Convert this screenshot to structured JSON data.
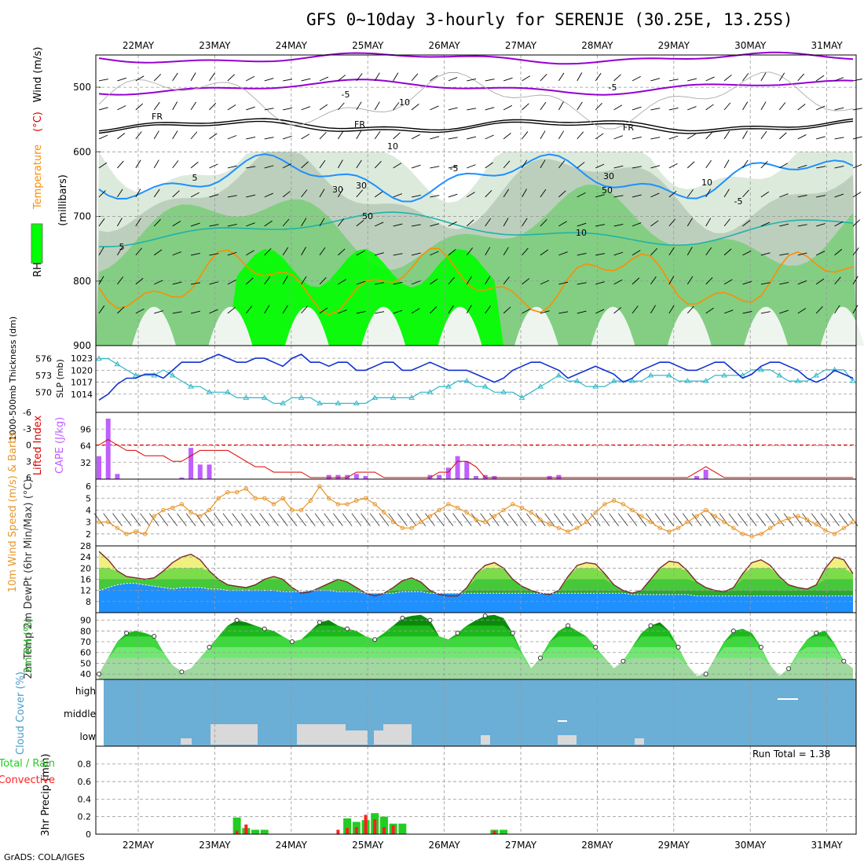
{
  "title": "GFS 0~10day 3-hourly for SERENJE (30.25E, 13.25S)",
  "credit": "GrADS: COLA/IGES",
  "x_axis_dates": [
    "22MAY",
    "23MAY",
    "24MAY",
    "25MAY",
    "26MAY",
    "27MAY",
    "28MAY",
    "29MAY",
    "30MAY",
    "31MAY"
  ],
  "colors": {
    "rh_green_light": "#d8e8d8",
    "rh_green_mid": "#7ccd7c",
    "rh_green_bright": "#00ff00",
    "temp_purple": "#9400d3",
    "temp_black": "#000000",
    "temp_blue": "#1e90ff",
    "temp_teal": "#20b2aa",
    "temp_orange": "#ff8c00",
    "cape_purple": "#bf5fff",
    "li_red": "#dd0000",
    "wind_orange": "#e8962a",
    "slp_blue": "#1030d0",
    "thick_cyan": "#30b8c8",
    "cloud_blue": "#6baed6",
    "cloud_gray": "#d9d9d9",
    "precip_green": "#22cc22",
    "precip_red": "#ff2020",
    "dew_blue": "#1e90ff",
    "temp_yellow": "#f0f080"
  },
  "chart_data": [
    {
      "type": "heatmap",
      "panel": "upper_air",
      "ylabel_parts": [
        "RH (%)",
        "Temperature",
        "(°C)",
        "Wind (m/s)"
      ],
      "ylabel_right": "(millibars)",
      "yticks": [
        "500",
        "600",
        "700",
        "800",
        "900"
      ],
      "ylim": [
        900,
        450
      ],
      "contour_labels": [
        "-5",
        "-5",
        "FR",
        "FR",
        "FR",
        "-5",
        "5",
        "-5",
        "10",
        "5",
        "10",
        "10",
        "30",
        "30",
        "50",
        "30",
        "50",
        "10"
      ]
    },
    {
      "type": "line",
      "panel": "slp_thickness",
      "ylabel_left": "1000-500mb Thickness (dm)",
      "ylabel_right": "SLP (mb)",
      "yticks_left": [
        "576",
        "573",
        "570"
      ],
      "yticks_right": [
        "1023",
        "1020",
        "1017",
        "1014"
      ],
      "series": [
        {
          "name": "SLP (mb)",
          "values": [
            1012.5,
            1014,
            1016.5,
            1018,
            1018,
            1019,
            1019,
            1018,
            1020,
            1022,
            1022,
            1022,
            1023,
            1024,
            1023,
            1022,
            1022,
            1023,
            1023,
            1022,
            1021,
            1023,
            1024,
            1022,
            1022,
            1021,
            1022,
            1022,
            1020,
            1020,
            1021,
            1022,
            1022,
            1020,
            1020,
            1021,
            1022,
            1021,
            1020,
            1020,
            1020,
            1019,
            1018,
            1017,
            1018,
            1020,
            1021,
            1022,
            1022,
            1021,
            1020,
            1018,
            1019,
            1020,
            1021,
            1020,
            1019,
            1017,
            1018,
            1020,
            1021,
            1022,
            1022,
            1021,
            1020,
            1020,
            1021,
            1022,
            1022,
            1020,
            1018,
            1019,
            1021,
            1022,
            1022,
            1021,
            1020,
            1018,
            1017,
            1018,
            1020,
            1019,
            1018
          ]
        },
        {
          "name": "1000-500mb Thickness (dm)",
          "values": [
            576,
            576,
            575,
            574,
            573,
            573,
            573,
            574,
            573,
            572,
            571,
            571,
            570,
            570,
            570,
            569,
            569,
            569,
            569,
            568,
            568,
            569,
            569,
            569,
            568,
            568,
            568,
            568,
            568,
            568,
            569,
            569,
            569,
            569,
            569,
            570,
            570,
            571,
            571,
            572,
            572,
            571,
            571,
            570,
            570,
            570,
            569,
            570,
            571,
            572,
            573,
            572,
            572,
            571,
            571,
            571,
            572,
            572,
            572,
            572,
            573,
            573,
            573,
            572,
            572,
            572,
            572,
            573,
            573,
            573,
            573,
            574,
            574,
            574,
            573,
            572,
            572,
            572,
            573,
            574,
            574,
            574,
            572
          ]
        }
      ]
    },
    {
      "type": "bar",
      "panel": "cape_li",
      "ylabel_left": "Lifted Index",
      "ylabel_right": "CAPE (J/kg)",
      "yticks_left": [
        "-6",
        "-3",
        "0",
        "3",
        "6"
      ],
      "yticks_right": [
        "96",
        "64",
        "32"
      ],
      "ylim_cape": [
        0,
        128
      ],
      "series": [
        {
          "name": "CAPE (J/kg)",
          "values": [
            44,
            116,
            10,
            0,
            0,
            0,
            0,
            0,
            0,
            3,
            60,
            28,
            28,
            0,
            0,
            0,
            0,
            0,
            0,
            0,
            0,
            0,
            0,
            0,
            0,
            8,
            8,
            8,
            10,
            6,
            0,
            0,
            0,
            0,
            0,
            0,
            8,
            8,
            22,
            44,
            34,
            6,
            8,
            6,
            0,
            0,
            0,
            0,
            0,
            6,
            8,
            0,
            0,
            0,
            0,
            0,
            0,
            0,
            0,
            0,
            0,
            0,
            0,
            0,
            0,
            6,
            18,
            0,
            0,
            0,
            0,
            0,
            0,
            0,
            0,
            0,
            0,
            0,
            0,
            0,
            0,
            0,
            0
          ]
        },
        {
          "name": "Lifted Index",
          "values": [
            0,
            -1,
            0,
            1,
            1,
            2,
            2,
            2,
            3,
            3,
            2,
            1,
            1,
            1,
            1,
            2,
            3,
            4,
            4,
            5,
            5,
            5,
            5,
            6,
            6,
            6,
            6,
            6,
            5,
            5,
            5,
            6,
            6,
            6,
            6,
            6,
            6,
            5,
            5,
            3,
            3,
            4,
            6,
            6,
            6,
            6,
            6,
            6,
            6,
            6,
            6,
            6,
            6,
            6,
            6,
            6,
            6,
            6,
            6,
            6,
            6,
            6,
            6,
            6,
            6,
            5,
            4,
            5,
            6,
            6,
            6,
            6,
            6,
            6,
            6,
            6,
            6,
            6,
            6,
            6,
            6,
            6,
            6
          ]
        }
      ]
    },
    {
      "type": "line",
      "panel": "wind10m",
      "ylabel": "10m Wind Speed (m/s) & Barbs",
      "yticks": [
        "6",
        "5",
        "4",
        "3",
        "2"
      ],
      "ylim": [
        1,
        6.5
      ],
      "series": [
        {
          "name": "10m Wind Speed (m/s)",
          "values": [
            3,
            3,
            2.5,
            2,
            2.2,
            2,
            3.5,
            4,
            4.2,
            4.5,
            3.8,
            3.5,
            4,
            5,
            5.5,
            5.5,
            5.8,
            5,
            5,
            4.5,
            5,
            4,
            4,
            4.8,
            6,
            5,
            4.5,
            4.5,
            4.8,
            5,
            4.5,
            3.8,
            3,
            2.5,
            2.5,
            3,
            3.5,
            4,
            4.5,
            4.2,
            3.8,
            3.2,
            3,
            3.5,
            4,
            4.5,
            4.2,
            3.8,
            3.2,
            2.8,
            2.5,
            2.2,
            2.5,
            3,
            3.8,
            4.5,
            4.8,
            4.5,
            4,
            3.5,
            3,
            2.5,
            2.2,
            2.5,
            3,
            3.5,
            4,
            3.5,
            3,
            2.5,
            2,
            1.8,
            2,
            2.5,
            3,
            3.3,
            3.5,
            3.2,
            2.8,
            2.3,
            2,
            2.5,
            3
          ]
        }
      ]
    },
    {
      "type": "area",
      "panel": "temp2m",
      "ylabel": "2m Temp 2m DewPt (6hr Min/Max) (°C)",
      "yticks": [
        "28",
        "24",
        "20",
        "16",
        "12",
        "8"
      ],
      "ylim": [
        4,
        28
      ],
      "series": [
        {
          "name": "2m Temp",
          "values": [
            26,
            23,
            19,
            17,
            16.5,
            16,
            16.5,
            19,
            22,
            24,
            25,
            23,
            19,
            16,
            14,
            13.5,
            13,
            14,
            16,
            17,
            16,
            13,
            11,
            11.5,
            13,
            14.5,
            16,
            15,
            13,
            11,
            10,
            11,
            13,
            15.5,
            16.5,
            15,
            12,
            10.5,
            10,
            10,
            13,
            18,
            21,
            22,
            20,
            16,
            13.5,
            12,
            11,
            10.5,
            12,
            17,
            21,
            22,
            21.5,
            18,
            14,
            12,
            11,
            12,
            16,
            20,
            22.5,
            22,
            19,
            15,
            13,
            12,
            11.5,
            13,
            18,
            22,
            23,
            21,
            17,
            14,
            13,
            12.5,
            14,
            20,
            24,
            23,
            18
          ]
        },
        {
          "name": "2m DewPt",
          "values": [
            10,
            11,
            12,
            12.5,
            12.5,
            12,
            11.5,
            11,
            10.5,
            11,
            11,
            11,
            10.5,
            10.5,
            10,
            10,
            10,
            10,
            10,
            10,
            9.5,
            9.5,
            9.5,
            10,
            10,
            10,
            9.5,
            9.5,
            9.5,
            9,
            9,
            9,
            9,
            9.5,
            9.5,
            9.5,
            9,
            9,
            9,
            9,
            9,
            9,
            9,
            9,
            9,
            9,
            9,
            9,
            9,
            9,
            9,
            9,
            9,
            9,
            9,
            9,
            9,
            9,
            8.5,
            8.5,
            8.5,
            8.5,
            8.5,
            8.5,
            8.5,
            8,
            8,
            8,
            8,
            8,
            8,
            8,
            8,
            8,
            8,
            8,
            8,
            8,
            8,
            8,
            8,
            8,
            8
          ]
        }
      ]
    },
    {
      "type": "area",
      "panel": "rh2m",
      "ylabel": "2m RH (%)",
      "yticks": [
        "90",
        "80",
        "70",
        "60",
        "50",
        "40"
      ],
      "ylim": [
        35,
        97
      ],
      "series": [
        {
          "name": "2m RH (%)",
          "values": [
            40,
            55,
            70,
            78,
            80,
            78,
            75,
            60,
            48,
            42,
            45,
            55,
            65,
            75,
            85,
            90,
            88,
            85,
            82,
            80,
            75,
            70,
            72,
            80,
            88,
            90,
            85,
            82,
            80,
            75,
            72,
            78,
            85,
            92,
            94,
            95,
            90,
            75,
            72,
            78,
            85,
            90,
            94,
            95,
            92,
            78,
            60,
            45,
            55,
            70,
            80,
            85,
            80,
            75,
            65,
            55,
            45,
            52,
            65,
            78,
            85,
            88,
            80,
            65,
            48,
            38,
            40,
            55,
            70,
            80,
            82,
            78,
            65,
            48,
            38,
            45,
            60,
            72,
            78,
            80,
            68,
            52,
            45
          ]
        }
      ]
    },
    {
      "type": "bar",
      "panel": "cloud",
      "ylabel": "Cloud Cover (%)",
      "ytick_labels": [
        "high",
        "middle",
        "low"
      ]
    },
    {
      "type": "bar",
      "panel": "precip",
      "ylabel_parts": [
        "3hr Precip (mm)",
        "Total / Rain",
        "Convective"
      ],
      "yticks": [
        "0.8",
        "0.6",
        "0.4",
        "0.2",
        "0"
      ],
      "ylim": [
        0,
        0.95
      ],
      "annotation": "Run Total = 1.38",
      "series": [
        {
          "name": "Total / Rain",
          "values": [
            0,
            0,
            0,
            0,
            0,
            0,
            0,
            0,
            0,
            0,
            0,
            0,
            0,
            0,
            0,
            0.19,
            0.07,
            0.05,
            0.05,
            0,
            0,
            0,
            0,
            0,
            0,
            0,
            0,
            0.18,
            0.14,
            0.16,
            0.24,
            0.2,
            0.12,
            0.12,
            0,
            0,
            0,
            0,
            0,
            0,
            0,
            0,
            0,
            0.05,
            0.05,
            0,
            0,
            0,
            0,
            0,
            0,
            0,
            0,
            0,
            0,
            0,
            0,
            0,
            0,
            0,
            0,
            0,
            0,
            0,
            0,
            0,
            0,
            0,
            0,
            0,
            0,
            0,
            0,
            0,
            0,
            0,
            0,
            0,
            0,
            0,
            0,
            0,
            0
          ]
        },
        {
          "name": "Convective",
          "values": [
            0,
            0,
            0,
            0,
            0,
            0,
            0,
            0,
            0,
            0,
            0,
            0,
            0,
            0,
            0,
            0.04,
            0.11,
            0,
            0,
            0,
            0,
            0,
            0,
            0,
            0,
            0,
            0.05,
            0.07,
            0.08,
            0.22,
            0.17,
            0.08,
            0.1,
            0,
            0,
            0,
            0,
            0,
            0,
            0,
            0,
            0,
            0,
            0.04,
            0,
            0,
            0,
            0,
            0,
            0,
            0,
            0,
            0,
            0,
            0,
            0,
            0,
            0,
            0,
            0,
            0,
            0,
            0,
            0,
            0,
            0,
            0,
            0,
            0,
            0,
            0,
            0,
            0,
            0,
            0,
            0,
            0,
            0,
            0,
            0,
            0,
            0,
            0
          ]
        }
      ]
    }
  ]
}
